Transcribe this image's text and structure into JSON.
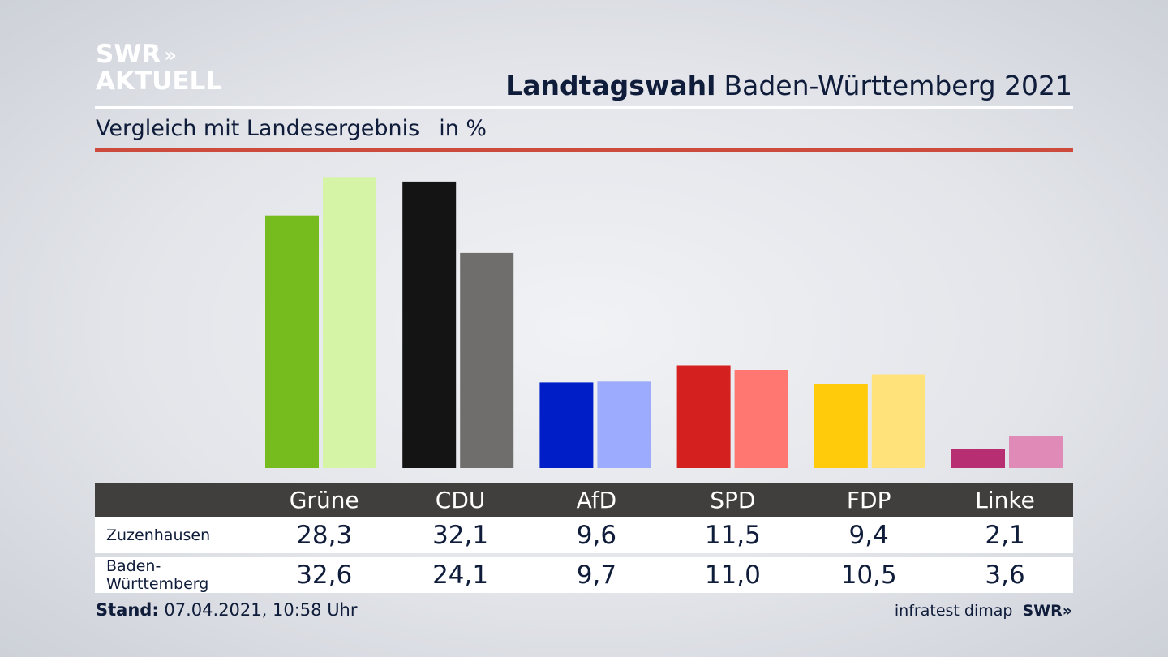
{
  "logo": {
    "line1": "SWR",
    "chevrons": "»",
    "line2": "AKTUELL"
  },
  "header": {
    "title_bold": "Landtagswahl",
    "title_rest": "Baden-Württemberg 2021"
  },
  "subtitle": {
    "text": "Vergleich mit Landesergebnis",
    "unit": "in %"
  },
  "colors": {
    "accent_rule": "#cc4b3c",
    "table_header": "#403f3d",
    "text": "#0f1c3a"
  },
  "table": {
    "headers": [
      "Grüne",
      "CDU",
      "AfD",
      "SPD",
      "FDP",
      "Linke"
    ],
    "rows": [
      {
        "label": "Zuzenhausen",
        "values": [
          "28,3",
          "32,1",
          "9,6",
          "11,5",
          "9,4",
          "2,1"
        ]
      },
      {
        "label": "Baden-Württemberg",
        "values": [
          "32,6",
          "24,1",
          "9,7",
          "11,0",
          "10,5",
          "3,6"
        ]
      }
    ]
  },
  "chart_data": {
    "type": "bar",
    "categories": [
      "Grüne",
      "CDU",
      "AfD",
      "SPD",
      "FDP",
      "Linke"
    ],
    "series": [
      {
        "name": "Zuzenhausen",
        "values": [
          28.3,
          32.1,
          9.6,
          11.5,
          9.4,
          2.1
        ],
        "colors": [
          "#77bc1f",
          "#141414",
          "#001ec8",
          "#d4201f",
          "#ffcb0a",
          "#b82e73"
        ]
      },
      {
        "name": "Baden-Württemberg",
        "values": [
          32.6,
          24.1,
          9.7,
          11.0,
          10.5,
          3.6
        ],
        "colors": [
          "#d5f4a6",
          "#6f6e6c",
          "#9dabff",
          "#ff7770",
          "#ffe27a",
          "#e08ab8"
        ]
      }
    ],
    "title": "Landtagswahl Baden-Württemberg 2021",
    "subtitle": "Vergleich mit Landesergebnis",
    "ylabel": "in %",
    "ylim": [
      0,
      33
    ],
    "grid": false,
    "legend": "table below chart"
  },
  "footer": {
    "stand_label": "Stand:",
    "stand_value": "07.04.2021, 10:58 Uhr",
    "source": "infratest dimap",
    "brand": "SWR»"
  }
}
